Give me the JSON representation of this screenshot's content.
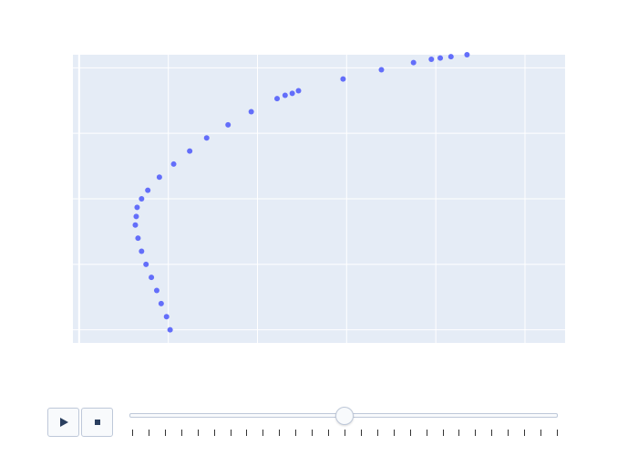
{
  "colors": {
    "plot_bg": "#e5ecf6",
    "grid": "#ffffff",
    "marker": "#636efa",
    "control_border": "#bec8d9",
    "control_bg": "#f8fafc",
    "icon": "#2a3f5f"
  },
  "chart_data": {
    "type": "scatter",
    "title": "",
    "xlabel": "",
    "ylabel": "",
    "grid": true,
    "legend": "none",
    "xlim": [
      -0.07,
      5.45
    ],
    "ylim": [
      -0.2,
      4.2
    ],
    "x_gridlines": [
      0,
      1,
      2,
      3,
      4,
      5
    ],
    "y_gridlines": [
      0,
      1,
      2,
      3,
      4
    ],
    "series": [
      {
        "x": [
          1.02,
          0.98,
          0.92,
          0.87,
          0.81,
          0.75,
          0.7,
          0.66,
          0.63,
          0.64,
          0.65,
          0.7,
          0.77,
          0.9,
          1.06,
          1.24,
          1.43,
          1.67,
          1.93,
          2.22,
          2.31,
          2.39,
          2.46,
          2.96,
          3.39,
          3.75,
          3.95,
          4.05,
          4.17,
          4.35
        ],
        "y": [
          0.0,
          0.2,
          0.4,
          0.6,
          0.8,
          1.0,
          1.2,
          1.4,
          1.6,
          1.73,
          1.87,
          2.0,
          2.13,
          2.33,
          2.53,
          2.73,
          2.93,
          3.13,
          3.33,
          3.53,
          3.58,
          3.61,
          3.65,
          3.83,
          3.97,
          4.08,
          4.13,
          4.15,
          4.17,
          4.2
        ]
      }
    ]
  },
  "controls": {
    "play_icon": "play-icon",
    "stop_icon": "stop-icon",
    "slider_position": 0.5,
    "slider_step_count": 27
  }
}
